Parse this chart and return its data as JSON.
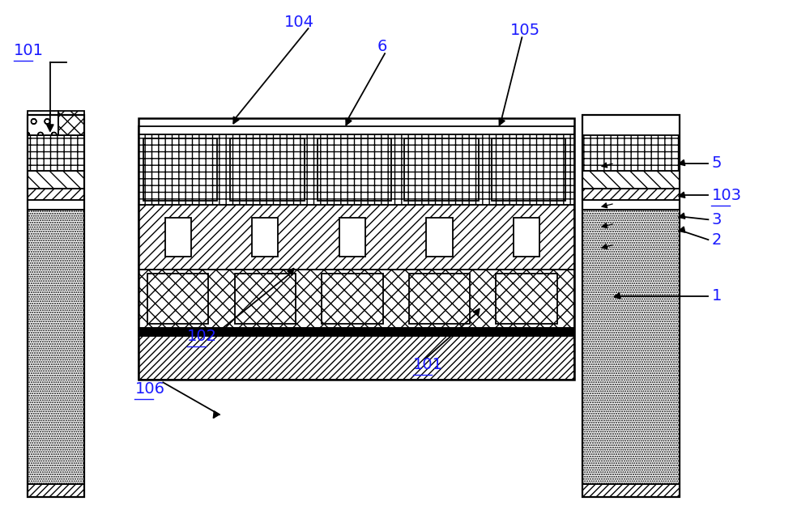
{
  "bg_color": "#ffffff",
  "line_color": "#000000",
  "label_color": "#1a1aff",
  "fig_width": 10.0,
  "fig_height": 6.56
}
